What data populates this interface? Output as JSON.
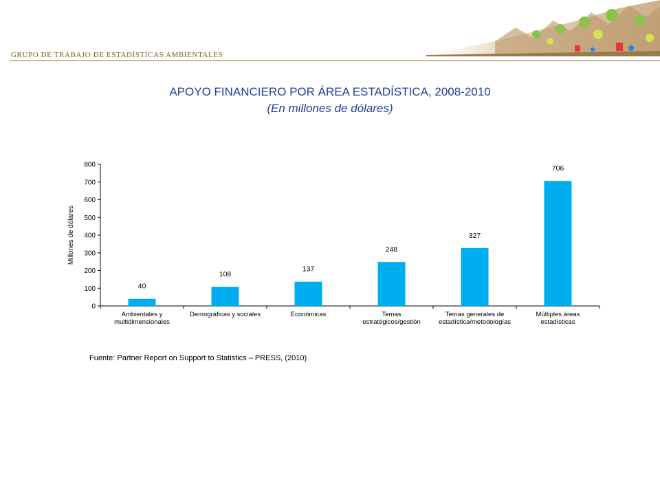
{
  "header": {
    "label": "GRUPO DE TRABAJO DE ESTADÍSTICAS AMBIENTALES"
  },
  "colors": {
    "bar": "#00aeef",
    "title": "#1f3f9e",
    "header_text": "#7a5a1e"
  },
  "title": "APOYO FINANCIERO POR ÁREA ESTADÍSTICA, 2008-2010",
  "subtitle": "(En millones de dólares)",
  "chart_data": {
    "type": "bar",
    "categories": [
      [
        "Ambientales y",
        "multidimensionales"
      ],
      [
        "Demográficas y sociales"
      ],
      [
        "Económicas"
      ],
      [
        "Temas",
        "estratégicos/gestión"
      ],
      [
        "Temas generales de",
        "estadística/metodologías"
      ],
      [
        "Múltiples áreas",
        "estadísticas"
      ]
    ],
    "values": [
      40,
      108,
      137,
      248,
      327,
      706
    ],
    "data_labels": [
      "40",
      "108",
      "137",
      "248",
      "327",
      "706"
    ],
    "ylabel": "Millones de dólares",
    "ylim": [
      0,
      800
    ],
    "yticks": [
      0,
      100,
      200,
      300,
      400,
      500,
      600,
      700,
      800
    ],
    "grid": false,
    "legend": "none"
  },
  "source": "Fuente: Partner Report on Support to Statistics – PRESS, (2010)"
}
